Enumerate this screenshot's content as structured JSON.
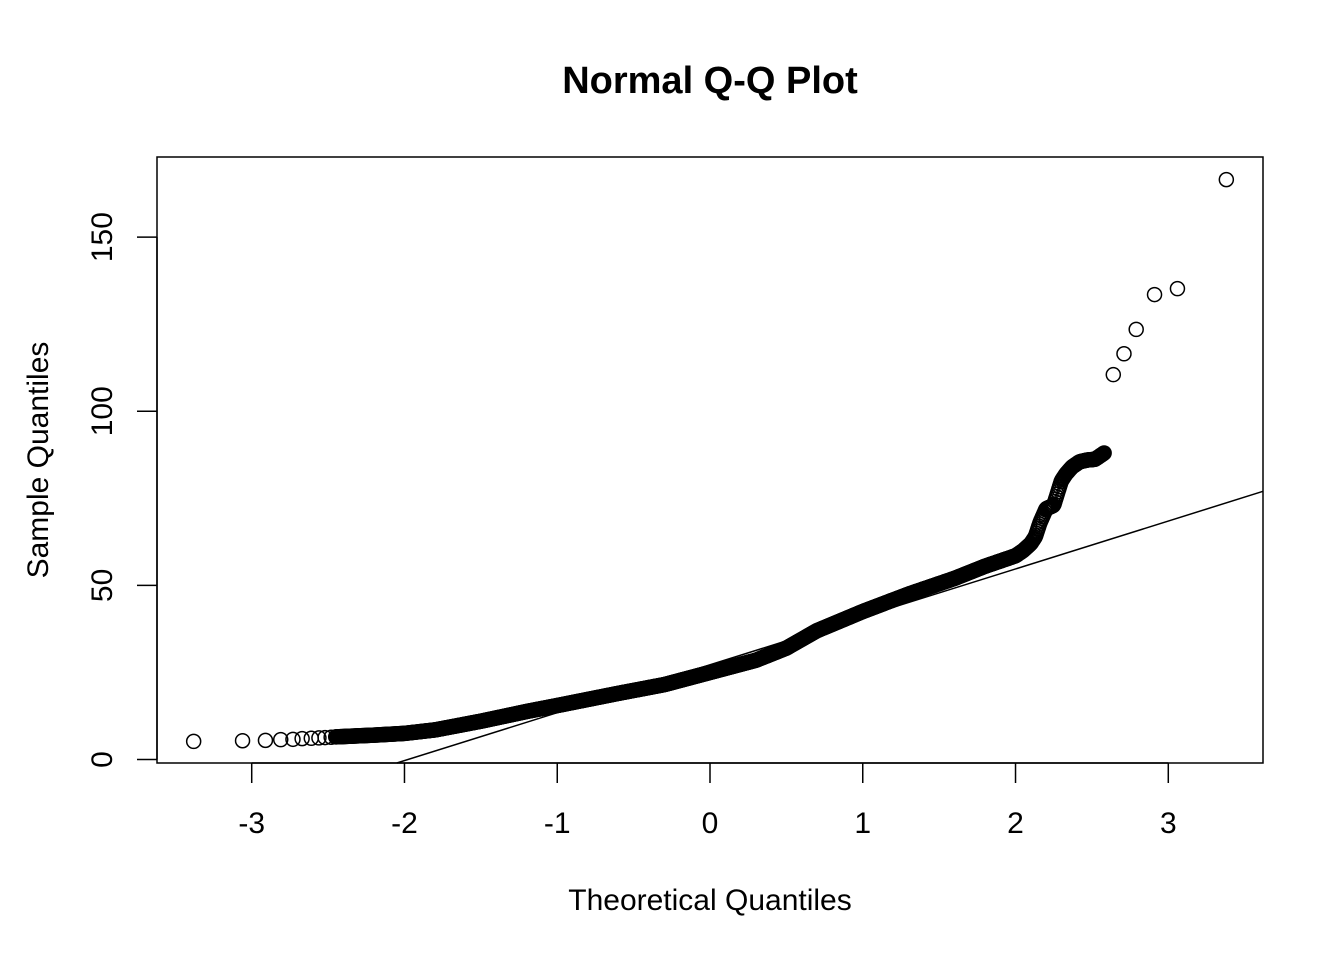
{
  "chart_data": {
    "type": "scatter",
    "title": "Normal Q-Q Plot",
    "xlabel": "Theoretical Quantiles",
    "ylabel": "Sample Quantiles",
    "xlim": [
      -3.62,
      3.62
    ],
    "ylim": [
      -1,
      173
    ],
    "x_ticks": [
      -3,
      -2,
      -1,
      0,
      1,
      2,
      3
    ],
    "x_tick_labels": [
      "-3",
      "-2",
      "-1",
      "0",
      "1",
      "2",
      "3"
    ],
    "y_ticks": [
      0,
      50,
      100,
      150
    ],
    "y_tick_labels": [
      "0",
      "50",
      "100",
      "150"
    ],
    "grid": false,
    "legend": "none",
    "colors": {
      "points": "#000000",
      "line": "#000000",
      "background": "#ffffff"
    },
    "reference_line": {
      "x": [
        -2.05,
        3.62
      ],
      "y": [
        -1,
        77
      ]
    },
    "outlier_points": {
      "x": [
        -3.38,
        -3.06,
        -2.91,
        -2.81,
        -2.73,
        -2.67,
        -2.61,
        -2.56,
        -2.52,
        -2.48,
        2.64,
        2.71,
        2.79,
        2.91,
        3.06,
        3.38
      ],
      "y": [
        5.2,
        5.4,
        5.5,
        5.7,
        5.8,
        6.0,
        6.1,
        6.2,
        6.3,
        6.4,
        110.5,
        116.5,
        123.5,
        133.5,
        135.2,
        166.5
      ]
    },
    "body_curve": {
      "x": [
        -2.45,
        -2.2,
        -2.0,
        -1.8,
        -1.5,
        -1.2,
        -1.0,
        -0.6,
        -0.3,
        0.0,
        0.3,
        0.5,
        0.7,
        1.0,
        1.3,
        1.6,
        1.8,
        2.0,
        2.05,
        2.1,
        2.13,
        2.16,
        2.2,
        2.25,
        2.3,
        2.33,
        2.37,
        2.42,
        2.47,
        2.52,
        2.58
      ],
      "y": [
        6.5,
        7.0,
        7.5,
        8.5,
        11.0,
        13.8,
        15.5,
        19.0,
        21.5,
        25.0,
        28.5,
        32.0,
        37.0,
        42.5,
        47.5,
        52.0,
        55.5,
        58.5,
        60.0,
        62.0,
        64.0,
        68.0,
        72.0,
        73.0,
        80.0,
        82.0,
        84.0,
        85.5,
        86.0,
        86.2,
        88.0
      ]
    },
    "body_point_count": 1000
  }
}
